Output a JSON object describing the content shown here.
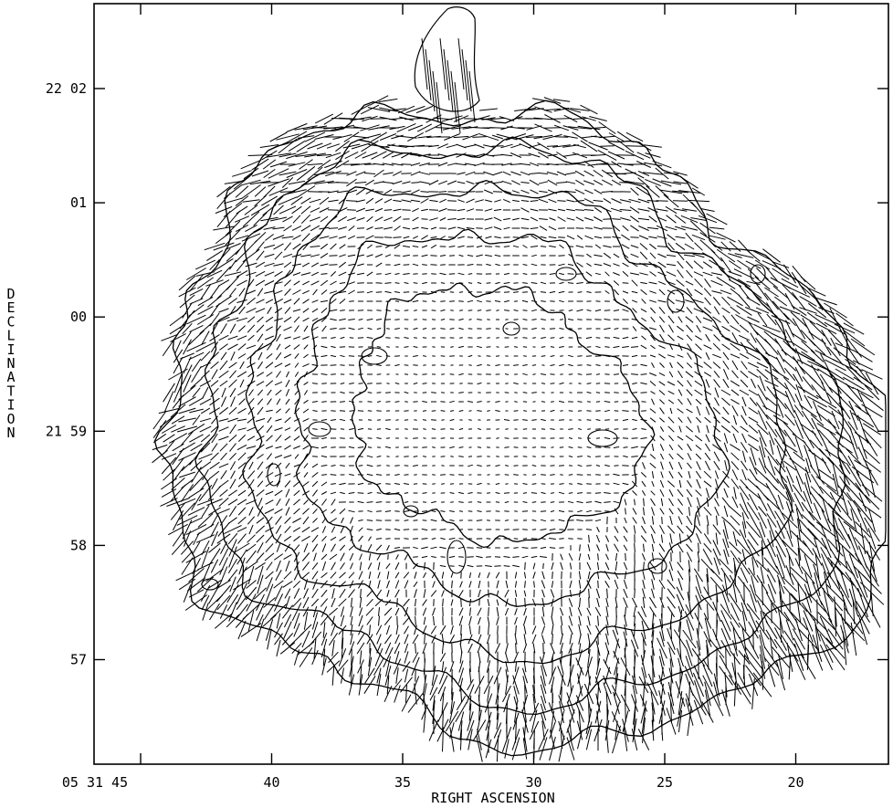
{
  "chart_data": {
    "type": "contour-vector-map",
    "xlabel": "RIGHT ASCENSION",
    "ylabel": "DECLINATION",
    "x_ticks": [
      {
        "label": "05 31 45",
        "ra_sec": 45
      },
      {
        "label": "40",
        "ra_sec": 40
      },
      {
        "label": "35",
        "ra_sec": 35
      },
      {
        "label": "30",
        "ra_sec": 30
      },
      {
        "label": "25",
        "ra_sec": 25
      },
      {
        "label": "20",
        "ra_sec": 20
      }
    ],
    "y_ticks": [
      {
        "label": "22 02",
        "dec_min": 62
      },
      {
        "label": "01",
        "dec_min": 61
      },
      {
        "label": "00",
        "dec_min": 60
      },
      {
        "label": "21 59",
        "dec_min": 59
      },
      {
        "label": "58",
        "dec_min": 58
      },
      {
        "label": "57",
        "dec_min": 57
      }
    ],
    "contour_levels": 5,
    "vector_field": "polarization vectors",
    "colors": {
      "line": "#000000",
      "background": "#ffffff"
    }
  }
}
